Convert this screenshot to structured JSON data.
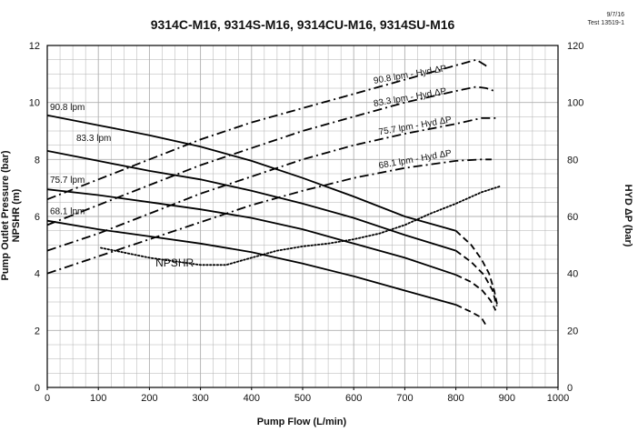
{
  "chart_data": {
    "type": "line",
    "title": "9314C-M16, 9314S-M16, 9314CU-M16, 9314SU-M16",
    "date": "9/7/16",
    "test_id": "Test 13519-1",
    "xlabel": "Pump Flow (L/min)",
    "ylabel_left_line1": "Pump Outlet Pressure (bar)",
    "ylabel_left_line2": "NPSHR (m)",
    "ylabel_right": "HYD ΔP (bar)",
    "xlim": [
      0,
      1000
    ],
    "ylim_left": [
      0,
      12
    ],
    "ylim_right": [
      0,
      120
    ],
    "x_ticks": [
      "0",
      "100",
      "200",
      "300",
      "400",
      "500",
      "600",
      "700",
      "800",
      "900",
      "1000"
    ],
    "y_ticks_left": [
      "0",
      "2",
      "4",
      "6",
      "8",
      "10",
      "12"
    ],
    "y_ticks_right": [
      "0",
      "20",
      "40",
      "60",
      "80",
      "100",
      "120"
    ],
    "grid": true,
    "colors": {
      "line": "#000000",
      "grid": "#b0b0b0",
      "axis": "#000000"
    },
    "series": [
      {
        "name": "90.8 lpm",
        "axis": "left",
        "style": "solid",
        "points": [
          [
            0,
            9.55
          ],
          [
            100,
            9.2
          ],
          [
            200,
            8.85
          ],
          [
            300,
            8.45
          ],
          [
            400,
            7.95
          ],
          [
            500,
            7.35
          ],
          [
            600,
            6.7
          ],
          [
            700,
            6.0
          ],
          [
            800,
            5.5
          ]
        ],
        "ext_style": "dashed",
        "ext_points": [
          [
            800,
            5.5
          ],
          [
            830,
            5.0
          ],
          [
            850,
            4.5
          ],
          [
            865,
            4.0
          ],
          [
            875,
            3.4
          ],
          [
            882,
            2.8
          ]
        ]
      },
      {
        "name": "83.3 lpm",
        "axis": "left",
        "style": "solid",
        "points": [
          [
            0,
            8.3
          ],
          [
            100,
            7.95
          ],
          [
            200,
            7.6
          ],
          [
            300,
            7.3
          ],
          [
            400,
            6.9
          ],
          [
            500,
            6.45
          ],
          [
            600,
            5.95
          ],
          [
            700,
            5.35
          ],
          [
            800,
            4.8
          ]
        ],
        "ext_style": "dashed",
        "ext_points": [
          [
            800,
            4.8
          ],
          [
            830,
            4.4
          ],
          [
            855,
            3.95
          ],
          [
            872,
            3.4
          ],
          [
            880,
            2.85
          ]
        ]
      },
      {
        "name": "75.7 lpm",
        "axis": "left",
        "style": "solid",
        "points": [
          [
            0,
            6.95
          ],
          [
            100,
            6.75
          ],
          [
            200,
            6.5
          ],
          [
            300,
            6.25
          ],
          [
            400,
            5.95
          ],
          [
            500,
            5.55
          ],
          [
            600,
            5.05
          ],
          [
            700,
            4.55
          ],
          [
            800,
            3.95
          ]
        ],
        "ext_style": "dashed",
        "ext_points": [
          [
            800,
            3.95
          ],
          [
            830,
            3.7
          ],
          [
            852,
            3.4
          ],
          [
            868,
            3.05
          ],
          [
            878,
            2.7
          ]
        ]
      },
      {
        "name": "68.1 lpm",
        "axis": "left",
        "style": "solid",
        "points": [
          [
            0,
            5.85
          ],
          [
            100,
            5.55
          ],
          [
            200,
            5.3
          ],
          [
            300,
            5.05
          ],
          [
            400,
            4.75
          ],
          [
            500,
            4.35
          ],
          [
            600,
            3.9
          ],
          [
            700,
            3.4
          ],
          [
            800,
            2.9
          ]
        ],
        "ext_style": "dashed",
        "ext_points": [
          [
            800,
            2.9
          ],
          [
            830,
            2.65
          ],
          [
            850,
            2.45
          ],
          [
            860,
            2.15
          ]
        ]
      },
      {
        "name": "90.8 lpm - Hyd ΔP",
        "axis": "right",
        "style": "dashdot",
        "points": [
          [
            0,
            66
          ],
          [
            100,
            73
          ],
          [
            200,
            80
          ],
          [
            300,
            87
          ],
          [
            400,
            93
          ],
          [
            500,
            98
          ],
          [
            600,
            103
          ],
          [
            700,
            108
          ],
          [
            800,
            113
          ],
          [
            840,
            115
          ],
          [
            858,
            113
          ],
          [
            865,
            112
          ]
        ]
      },
      {
        "name": "83.3 lpm - Hyd ΔP",
        "axis": "right",
        "style": "dashdot",
        "points": [
          [
            0,
            57
          ],
          [
            100,
            64
          ],
          [
            200,
            71
          ],
          [
            300,
            78
          ],
          [
            400,
            84
          ],
          [
            500,
            90
          ],
          [
            600,
            95
          ],
          [
            700,
            100
          ],
          [
            800,
            104
          ],
          [
            840,
            105.5
          ],
          [
            860,
            105
          ],
          [
            875,
            104
          ]
        ]
      },
      {
        "name": "75.7 lpm - Hyd ΔP",
        "axis": "right",
        "style": "dashdot",
        "points": [
          [
            0,
            48
          ],
          [
            100,
            54
          ],
          [
            200,
            61
          ],
          [
            300,
            68
          ],
          [
            400,
            74
          ],
          [
            500,
            80
          ],
          [
            600,
            85
          ],
          [
            700,
            89
          ],
          [
            800,
            92.5
          ],
          [
            850,
            94.5
          ],
          [
            880,
            94.5
          ]
        ]
      },
      {
        "name": "68.1 lpm - Hyd ΔP",
        "axis": "right",
        "style": "dashdot",
        "points": [
          [
            0,
            40
          ],
          [
            100,
            46
          ],
          [
            200,
            52
          ],
          [
            300,
            58
          ],
          [
            400,
            64
          ],
          [
            500,
            69
          ],
          [
            600,
            73.5
          ],
          [
            700,
            77
          ],
          [
            800,
            79.5
          ],
          [
            850,
            80
          ],
          [
            870,
            80
          ]
        ]
      },
      {
        "name": "NPSHR",
        "axis": "left",
        "style": "dotted",
        "points": [
          [
            105,
            4.9
          ],
          [
            200,
            4.55
          ],
          [
            300,
            4.3
          ],
          [
            350,
            4.3
          ],
          [
            400,
            4.55
          ],
          [
            450,
            4.8
          ],
          [
            500,
            4.95
          ],
          [
            550,
            5.05
          ],
          [
            600,
            5.2
          ],
          [
            650,
            5.4
          ],
          [
            700,
            5.7
          ],
          [
            750,
            6.1
          ],
          [
            800,
            6.45
          ],
          [
            850,
            6.85
          ],
          [
            885,
            7.05
          ]
        ]
      }
    ]
  }
}
